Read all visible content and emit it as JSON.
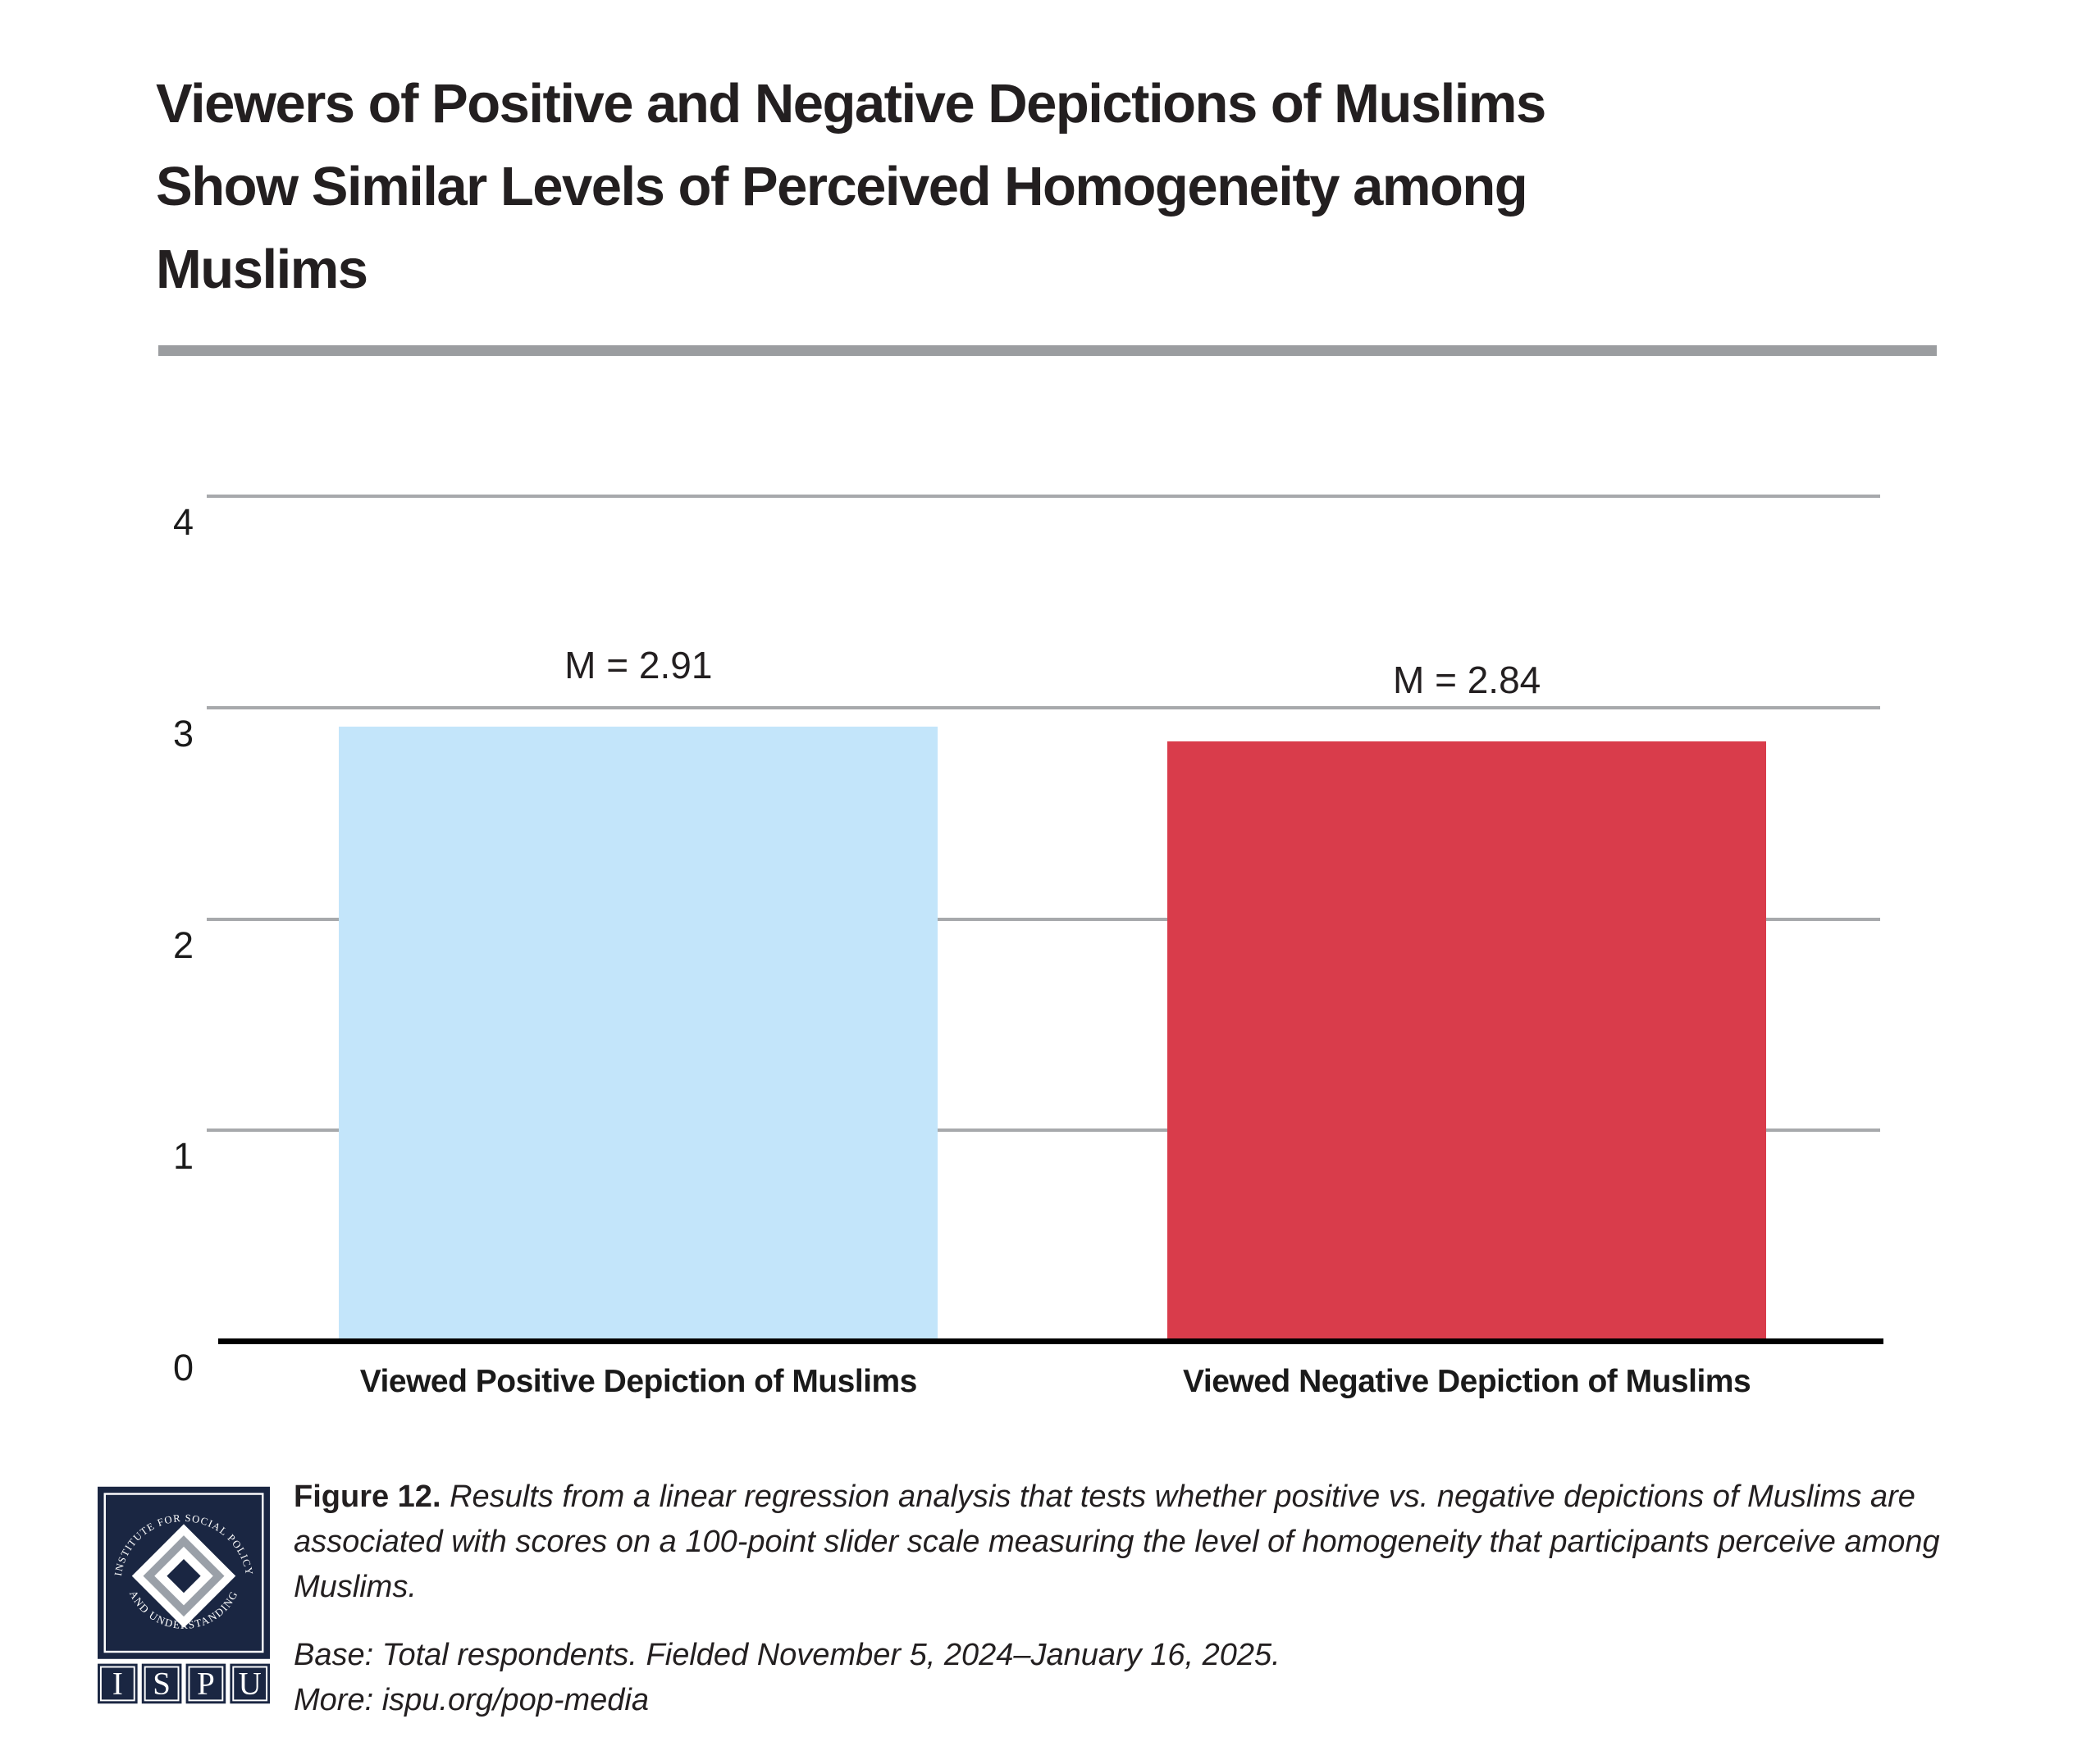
{
  "title": {
    "text": "Viewers of Positive and Negative Depictions of Muslims Show Similar Levels of Perceived Homogeneity among Muslims",
    "lines": [
      "Viewers of Positive and Negative Depictions of Muslims",
      "Show Similar Levels of Perceived Homogeneity among",
      "Muslims"
    ]
  },
  "chart_data": {
    "type": "bar",
    "title": "Viewers of Positive and Negative Depictions of Muslims Show Similar Levels of Perceived Homogeneity among Muslims",
    "categories": [
      "Viewed Positive Depiction of Muslims",
      "Viewed Negative Depiction of Muslims"
    ],
    "values": [
      2.91,
      2.84
    ],
    "value_labels": [
      "M = 2.91",
      "M = 2.84"
    ],
    "bar_colors": [
      "#c3e5fa",
      "#d93c4b"
    ],
    "xlabel": "",
    "ylabel": "",
    "ylim": [
      0,
      4
    ],
    "yticks": [
      0,
      1,
      2,
      3,
      4
    ],
    "grid": "horizontal gridlines at 1, 2, 3, 4; hidden behind bars",
    "legend": "none"
  },
  "footer": {
    "figure_label": "Figure 12.",
    "caption": "Results from a linear regression analysis that tests whether positive vs. negative depictions of Muslims are associated with scores on a 100-point slider scale measuring the level of homogeneity that participants perceive among Muslims.",
    "base_note": "Base: Total respondents. Fielded November 5, 2024–January 16, 2025.",
    "more_note": "More: ispu.org/pop-media",
    "logo": {
      "arc_text_top": "INSTITUTE FOR SOCIAL POLICY",
      "arc_text_bottom": "AND UNDERSTANDING",
      "letters": [
        "I",
        "S",
        "P",
        "U"
      ]
    }
  },
  "colors": {
    "bar_positive": "#c3e5fa",
    "bar_negative": "#d93c4b",
    "text": "#231f20",
    "divider": "#9b9da0",
    "gridline": "#a7a9ac",
    "axis": "#000000",
    "logo_navy": "#1a2642",
    "logo_gray": "#9aa0a8"
  }
}
